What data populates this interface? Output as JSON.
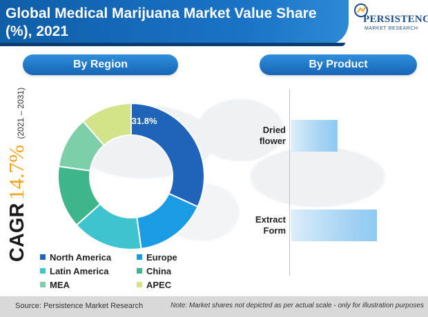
{
  "title": "Global Medical Marijuana Market Value Share (%), 2021",
  "logo": {
    "word": "PERSISTENCE",
    "sub": "MARKET RESEARCH"
  },
  "sections": {
    "region": "By Region",
    "product": "By Product"
  },
  "cagr": {
    "label": "CAGR",
    "value": "14.7%",
    "period": "(2021 – 2031)"
  },
  "colors": {
    "north_america": "#1f64b8",
    "europe": "#1b9be3",
    "latin_america": "#3fc4cf",
    "china": "#3fb58a",
    "mea": "#7ccfa8",
    "apec": "#d2e38a"
  },
  "chart_data": [
    {
      "type": "pie",
      "subtype": "donut",
      "title": "By Region",
      "categories": [
        "North America",
        "Europe",
        "Latin America",
        "China",
        "MEA",
        "APEC"
      ],
      "values": [
        31.8,
        16.0,
        15.6,
        13.8,
        11.4,
        11.4
      ],
      "labels": [
        "31.8%",
        "",
        "",
        "",
        "",
        ""
      ],
      "legend": "bottom"
    },
    {
      "type": "bar",
      "orientation": "horizontal",
      "title": "By Product",
      "categories": [
        "Dried flower",
        "Extract Form"
      ],
      "values": [
        35,
        65
      ],
      "value_scale": "relative (not to actual scale)"
    }
  ],
  "footer": {
    "source": "Source: Persistence Market Research",
    "note": "Note: Market shares not depicted as per actual scale - only for illustration purposes"
  }
}
